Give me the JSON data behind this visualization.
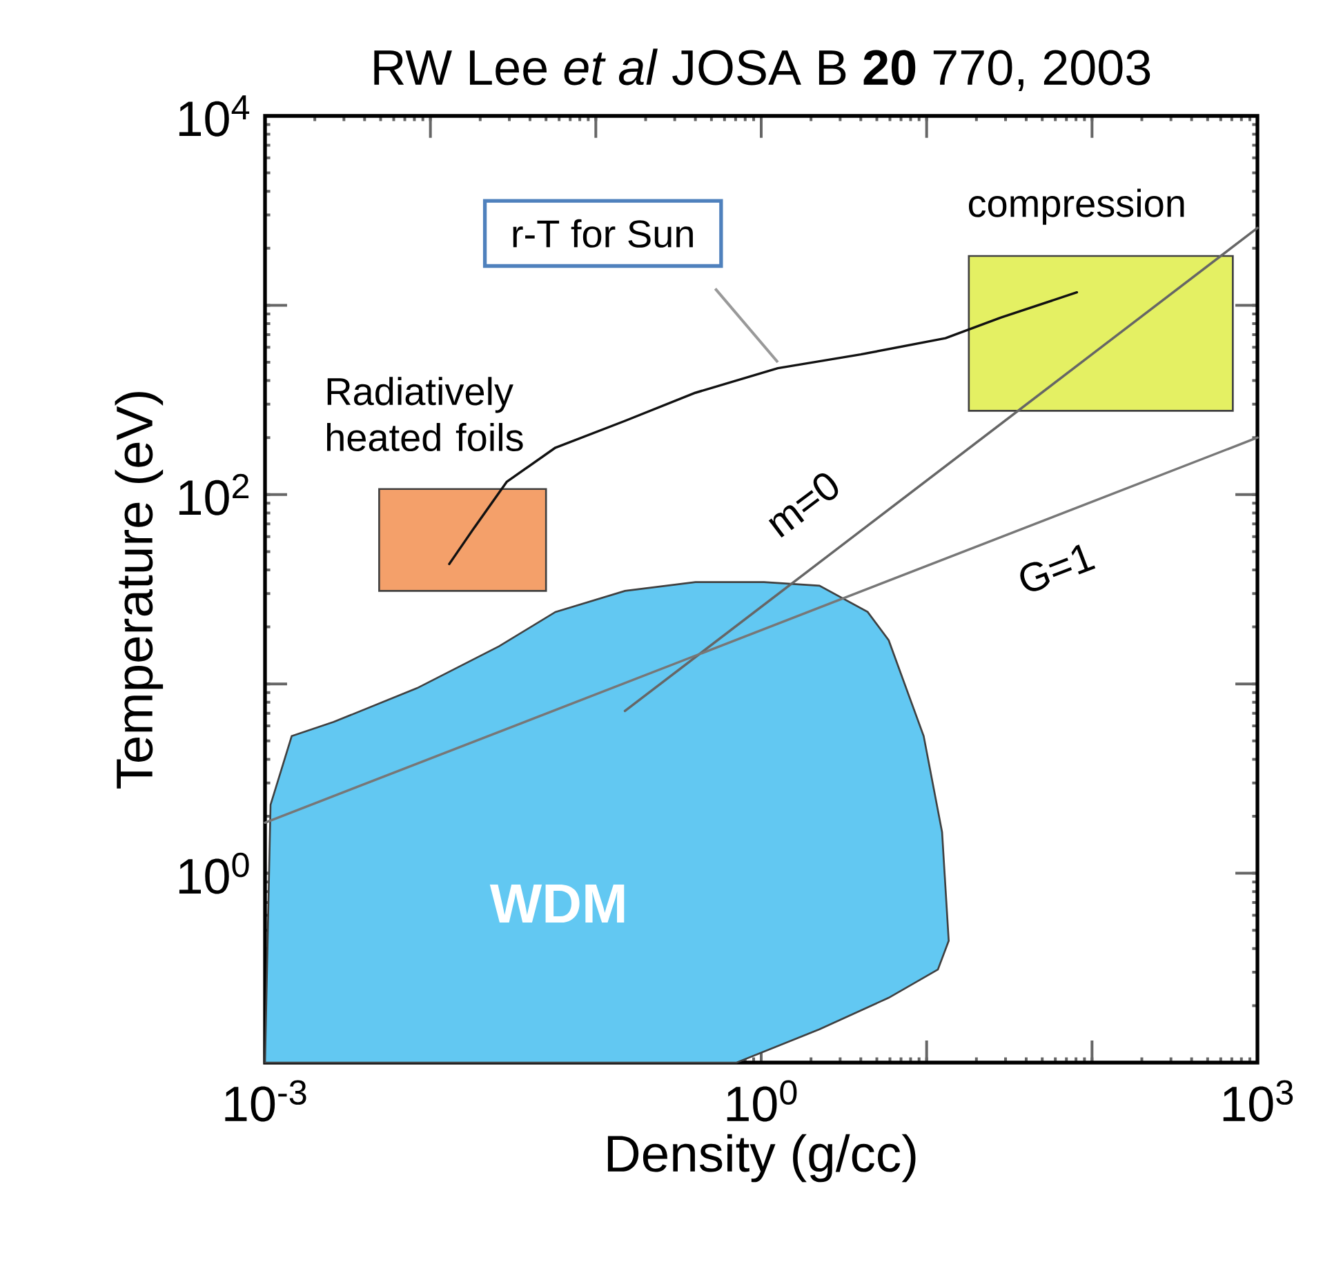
{
  "chart_data": {
    "type": "line",
    "title": "RW Lee *et al*  JOSA B **20** 770, 2003",
    "xlabel": "Density (g/cc)",
    "ylabel": "Temperature (eV)",
    "log": "xy",
    "xlim": [
      0.001,
      1000
    ],
    "ylim": [
      0.1,
      10000
    ],
    "xticks": [
      {
        "value": 0.001,
        "label": "10$^{-3}$"
      },
      {
        "value": 0.01,
        "label": null
      },
      {
        "value": 0.1,
        "label": null
      },
      {
        "value": 1,
        "label": "10$^{0}$"
      },
      {
        "value": 10,
        "label": null
      },
      {
        "value": 100,
        "label": null
      },
      {
        "value": 1000,
        "label": "10$^{3}$"
      }
    ],
    "yticks": [
      {
        "value": 0.1,
        "label": null
      },
      {
        "value": 1,
        "label": "10$^{0}$"
      },
      {
        "value": 10,
        "label": null
      },
      {
        "value": 100,
        "label": "10$^{2}$"
      },
      {
        "value": 1000,
        "label": null
      },
      {
        "value": 10000,
        "label": "10$^{4}$"
      }
    ],
    "series": [
      {
        "type": "area",
        "color": "#62c8f2",
        "x": [
          0.001,
          0.00108,
          0.00145,
          0.0026,
          0.0083,
          0.026,
          0.057,
          0.15,
          0.4,
          1.04,
          2.25,
          4.4,
          5.9,
          9.6,
          12.4,
          13.6,
          11.7,
          5.9,
          2.25,
          0.71,
          0.001
        ],
        "values": [
          0.1,
          2.3,
          5.3,
          6.3,
          9.5,
          15.8,
          24,
          31,
          34.5,
          34.5,
          33,
          24,
          17,
          5.3,
          1.65,
          0.44,
          0.31,
          0.22,
          0.15,
          0.1,
          0.1
        ]
      },
      {
        "type": "area",
        "color": "#f4a06a",
        "x": [
          0.0049,
          0.05,
          0.05,
          0.0049,
          0.0049
        ],
        "values": [
          31,
          31,
          107,
          107,
          31
        ]
      },
      {
        "type": "area",
        "color": "#e4f063",
        "x": [
          18,
          710,
          710,
          18,
          18
        ],
        "values": [
          277,
          277,
          1820,
          1820,
          277
        ]
      },
      {
        "type": "line",
        "color": "#666666",
        "x": [
          0.15,
          1000
        ],
        "values": [
          7.2,
          2560
        ]
      },
      {
        "type": "line",
        "color": "#777777",
        "x": [
          0.001,
          1000
        ],
        "values": [
          1.85,
          200
        ]
      },
      {
        "type": "line",
        "color": "#111111",
        "x": [
          0.013,
          0.018,
          0.029,
          0.057,
          0.15,
          0.4,
          1.26,
          4.0,
          13,
          28,
          81
        ],
        "values": [
          43,
          65,
          117,
          177,
          245,
          345,
          465,
          550,
          670,
          860,
          1170
        ]
      }
    ],
    "annotations": [
      {
        "text": "r-T for Sun",
        "x": 1.26,
        "y": 500
      },
      "compression",
      "Radiatively heated foils",
      "m=0",
      "G=1",
      "WDM"
    ]
  }
}
